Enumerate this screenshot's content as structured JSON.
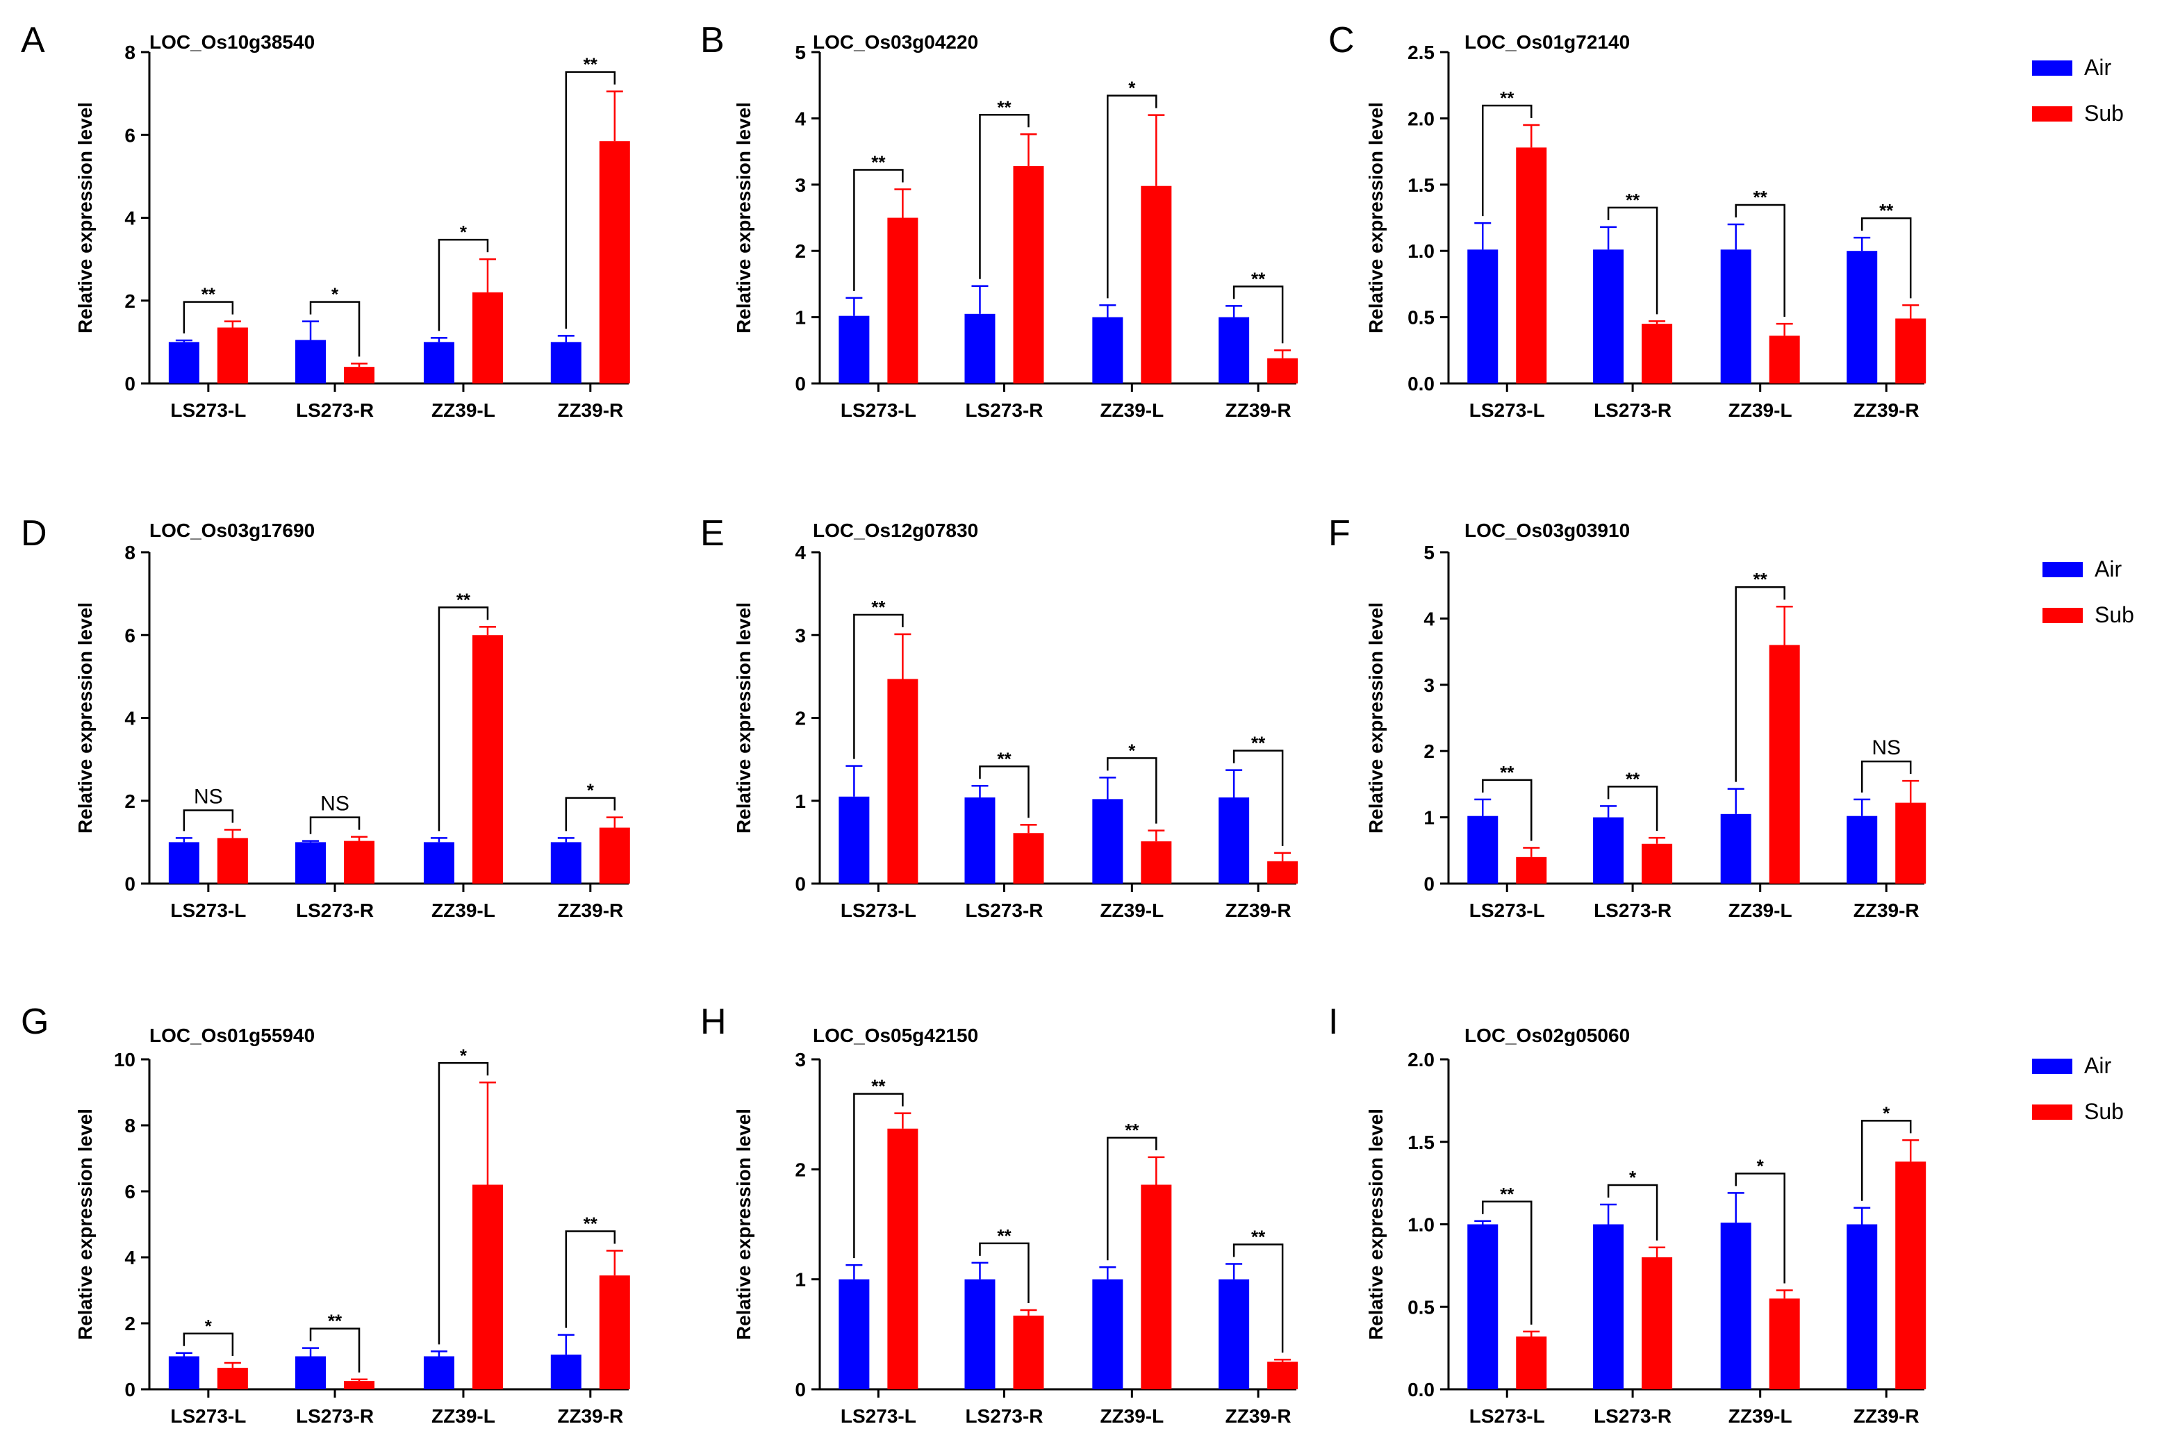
{
  "colors": {
    "air": "#0000ff",
    "sub": "#ff0000",
    "axis": "#000000"
  },
  "figure": {
    "categories": [
      "LS273-L",
      "LS273-R",
      "ZZ39-L",
      "ZZ39-R"
    ],
    "ylabel": "Relative expression level",
    "legend": {
      "air": "Air",
      "sub": "Sub"
    }
  },
  "chart_data": [
    {
      "type": "bar",
      "panel": "A",
      "title": "LOC_Os10g38540",
      "categories": [
        "LS273-L",
        "LS273-R",
        "ZZ39-L",
        "ZZ39-R"
      ],
      "xlabel": "",
      "ylabel": "Relative expression level",
      "ylim": [
        0,
        8
      ],
      "yticks": [
        "0",
        "2",
        "4",
        "6",
        "8"
      ],
      "series": [
        {
          "name": "Air",
          "values": [
            1.0,
            1.05,
            1.0,
            1.0
          ],
          "errors": [
            0.04,
            0.45,
            0.1,
            0.15
          ]
        },
        {
          "name": "Sub",
          "values": [
            1.35,
            0.4,
            2.2,
            5.85
          ],
          "errors": [
            0.15,
            0.08,
            0.8,
            1.2
          ]
        }
      ],
      "significance": [
        "**",
        "*",
        "*",
        "**"
      ]
    },
    {
      "type": "bar",
      "panel": "B",
      "title": "LOC_Os03g04220",
      "categories": [
        "LS273-L",
        "LS273-R",
        "ZZ39-L",
        "ZZ39-R"
      ],
      "xlabel": "",
      "ylabel": "Relative expression level",
      "ylim": [
        0,
        5
      ],
      "yticks": [
        "0",
        "1",
        "2",
        "3",
        "4",
        "5"
      ],
      "series": [
        {
          "name": "Air",
          "values": [
            1.02,
            1.05,
            1.0,
            1.0
          ],
          "errors": [
            0.27,
            0.42,
            0.18,
            0.17
          ]
        },
        {
          "name": "Sub",
          "values": [
            2.5,
            3.28,
            2.98,
            0.38
          ],
          "errors": [
            0.43,
            0.48,
            1.07,
            0.12
          ]
        }
      ],
      "significance": [
        "**",
        "**",
        "*",
        "**"
      ]
    },
    {
      "type": "bar",
      "panel": "C",
      "title": "LOC_Os01g72140",
      "categories": [
        "LS273-L",
        "LS273-R",
        "ZZ39-L",
        "ZZ39-R"
      ],
      "xlabel": "",
      "ylabel": "Relative expression level",
      "ylim": [
        0,
        2.5
      ],
      "yticks": [
        "0.0",
        "0.5",
        "1.0",
        "1.5",
        "2.0",
        "2.5"
      ],
      "series": [
        {
          "name": "Air",
          "values": [
            1.01,
            1.01,
            1.01,
            1.0
          ],
          "errors": [
            0.2,
            0.17,
            0.19,
            0.1
          ]
        },
        {
          "name": "Sub",
          "values": [
            1.78,
            0.45,
            0.36,
            0.49
          ],
          "errors": [
            0.17,
            0.02,
            0.09,
            0.1
          ]
        }
      ],
      "significance": [
        "**",
        "**",
        "**",
        "**"
      ]
    },
    {
      "type": "bar",
      "panel": "D",
      "title": "LOC_Os03g17690",
      "categories": [
        "LS273-L",
        "LS273-R",
        "ZZ39-L",
        "ZZ39-R"
      ],
      "xlabel": "",
      "ylabel": "Relative expression level",
      "ylim": [
        0,
        8
      ],
      "yticks": [
        "0",
        "2",
        "4",
        "6",
        "8"
      ],
      "series": [
        {
          "name": "Air",
          "values": [
            1.0,
            1.0,
            1.0,
            1.0
          ],
          "errors": [
            0.1,
            0.03,
            0.1,
            0.1
          ]
        },
        {
          "name": "Sub",
          "values": [
            1.1,
            1.03,
            6.0,
            1.35
          ],
          "errors": [
            0.2,
            0.1,
            0.2,
            0.25
          ]
        }
      ],
      "significance": [
        "NS",
        "NS",
        "**",
        "*"
      ]
    },
    {
      "type": "bar",
      "panel": "E",
      "title": "LOC_Os12g07830",
      "categories": [
        "LS273-L",
        "LS273-R",
        "ZZ39-L",
        "ZZ39-R"
      ],
      "xlabel": "",
      "ylabel": "Relative expression level",
      "ylim": [
        0,
        4
      ],
      "yticks": [
        "0",
        "1",
        "2",
        "3",
        "4"
      ],
      "series": [
        {
          "name": "Air",
          "values": [
            1.05,
            1.04,
            1.02,
            1.04
          ],
          "errors": [
            0.37,
            0.14,
            0.26,
            0.33
          ]
        },
        {
          "name": "Sub",
          "values": [
            2.47,
            0.61,
            0.51,
            0.27
          ],
          "errors": [
            0.54,
            0.1,
            0.13,
            0.1
          ]
        }
      ],
      "significance": [
        "**",
        "**",
        "*",
        "**"
      ]
    },
    {
      "type": "bar",
      "panel": "F",
      "title": "LOC_Os03g03910",
      "categories": [
        "LS273-L",
        "LS273-R",
        "ZZ39-L",
        "ZZ39-R"
      ],
      "xlabel": "",
      "ylabel": "Relative expression level",
      "ylim": [
        0,
        5
      ],
      "yticks": [
        "0",
        "1",
        "2",
        "3",
        "4",
        "5"
      ],
      "series": [
        {
          "name": "Air",
          "values": [
            1.02,
            1.0,
            1.05,
            1.02
          ],
          "errors": [
            0.25,
            0.17,
            0.38,
            0.25
          ]
        },
        {
          "name": "Sub",
          "values": [
            0.4,
            0.6,
            3.6,
            1.22
          ],
          "errors": [
            0.14,
            0.09,
            0.58,
            0.33
          ]
        }
      ],
      "significance": [
        "**",
        "**",
        "**",
        "NS"
      ]
    },
    {
      "type": "bar",
      "panel": "G",
      "title": "LOC_Os01g55940",
      "categories": [
        "LS273-L",
        "LS273-R",
        "ZZ39-L",
        "ZZ39-R"
      ],
      "xlabel": "",
      "ylabel": "Relative expression level",
      "ylim": [
        0,
        10
      ],
      "yticks": [
        "0",
        "2",
        "4",
        "6",
        "8",
        "10"
      ],
      "series": [
        {
          "name": "Air",
          "values": [
            1.0,
            1.0,
            1.0,
            1.05
          ],
          "errors": [
            0.1,
            0.25,
            0.15,
            0.6
          ]
        },
        {
          "name": "Sub",
          "values": [
            0.65,
            0.25,
            6.2,
            3.45
          ],
          "errors": [
            0.15,
            0.05,
            3.1,
            0.75
          ]
        }
      ],
      "significance": [
        "*",
        "**",
        "*",
        "**"
      ]
    },
    {
      "type": "bar",
      "panel": "H",
      "title": "LOC_Os05g42150",
      "categories": [
        "LS273-L",
        "LS273-R",
        "ZZ39-L",
        "ZZ39-R"
      ],
      "xlabel": "",
      "ylabel": "Relative expression level",
      "ylim": [
        0,
        3
      ],
      "yticks": [
        "0",
        "1",
        "2",
        "3"
      ],
      "series": [
        {
          "name": "Air",
          "values": [
            1.0,
            1.0,
            1.0,
            1.0
          ],
          "errors": [
            0.13,
            0.15,
            0.11,
            0.14
          ]
        },
        {
          "name": "Sub",
          "values": [
            2.37,
            0.67,
            1.86,
            0.25
          ],
          "errors": [
            0.14,
            0.05,
            0.25,
            0.02
          ]
        }
      ],
      "significance": [
        "**",
        "**",
        "**",
        "**"
      ]
    },
    {
      "type": "bar",
      "panel": "I",
      "title": "LOC_Os02g05060",
      "categories": [
        "LS273-L",
        "LS273-R",
        "ZZ39-L",
        "ZZ39-R"
      ],
      "xlabel": "",
      "ylabel": "Relative expression level",
      "ylim": [
        0,
        2.0
      ],
      "yticks": [
        "0.0",
        "0.5",
        "1.0",
        "1.5",
        "2.0"
      ],
      "series": [
        {
          "name": "Air",
          "values": [
            1.0,
            1.0,
            1.01,
            1.0
          ],
          "errors": [
            0.02,
            0.12,
            0.18,
            0.1
          ]
        },
        {
          "name": "Sub",
          "values": [
            0.32,
            0.8,
            0.55,
            1.38
          ],
          "errors": [
            0.03,
            0.06,
            0.05,
            0.13
          ]
        }
      ],
      "significance": [
        "**",
        "*",
        "*",
        "*"
      ]
    }
  ]
}
